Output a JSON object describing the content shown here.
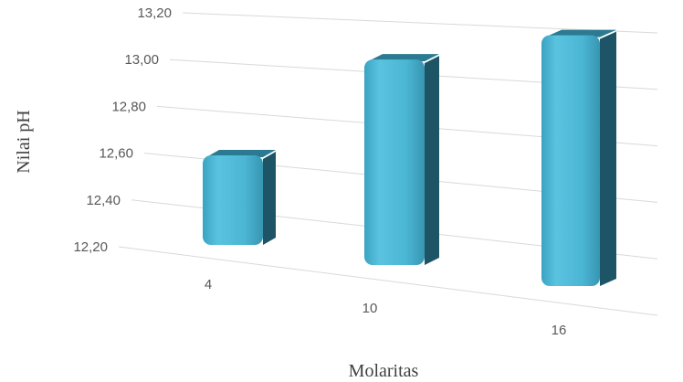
{
  "chart_data": {
    "type": "bar",
    "categories": [
      "4",
      "10",
      "16"
    ],
    "values": [
      12.63,
      12.97,
      13.0
    ],
    "xlabel": "Molaritas",
    "ylabel": "Nilai pH",
    "ylim": [
      12.2,
      13.2
    ],
    "yticks": [
      "12,20",
      "12,40",
      "12,60",
      "12,80",
      "13,00",
      "13,20"
    ],
    "grid": true,
    "style": "3d-perspective-bars",
    "bar_color": "#4bb5d4",
    "bar_side_color": "#1e5566",
    "bar_top_color": "#2c7a91"
  }
}
